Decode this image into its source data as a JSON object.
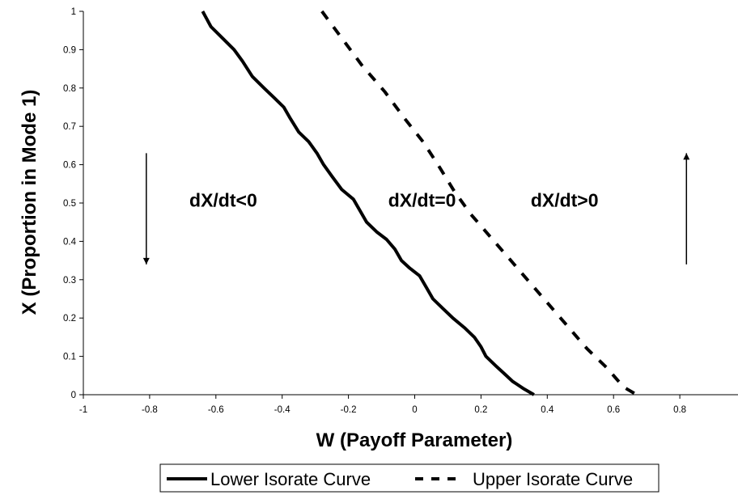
{
  "chart_data": {
    "type": "line",
    "xlabel": "W (Payoff Parameter)",
    "ylabel": "X (Proportion in Mode 1)",
    "xlim": [
      -1,
      1
    ],
    "ylim": [
      0,
      1
    ],
    "x_ticks": [
      -1,
      -0.8,
      -0.6,
      -0.4,
      -0.2,
      0,
      0.2,
      0.4,
      0.6,
      0.8
    ],
    "x_tick_labels": [
      "-1",
      "-0.8",
      "-0.6",
      "-0.4",
      "-0.2",
      "0",
      "0.2",
      "0.4",
      "0.6",
      "0.8"
    ],
    "y_ticks": [
      0,
      0.1,
      0.2,
      0.3,
      0.4,
      0.5,
      0.6,
      0.7,
      0.8,
      0.9,
      1
    ],
    "y_tick_labels": [
      "0",
      "0.1",
      "0.2",
      "0.3",
      "0.4",
      "0.5",
      "0.6",
      "0.7",
      "0.8",
      "0.9",
      "1"
    ],
    "grid": false,
    "legend_position": "bottom",
    "series": [
      {
        "name": "Lower Isorate Curve",
        "style": "solid",
        "color": "#000000",
        "points": [
          [
            -0.64,
            1.0
          ],
          [
            -0.615,
            0.96
          ],
          [
            -0.58,
            0.93
          ],
          [
            -0.545,
            0.9
          ],
          [
            -0.52,
            0.87
          ],
          [
            -0.49,
            0.83
          ],
          [
            -0.455,
            0.8
          ],
          [
            -0.425,
            0.775
          ],
          [
            -0.395,
            0.75
          ],
          [
            -0.375,
            0.72
          ],
          [
            -0.35,
            0.685
          ],
          [
            -0.32,
            0.66
          ],
          [
            -0.295,
            0.63
          ],
          [
            -0.275,
            0.6
          ],
          [
            -0.25,
            0.57
          ],
          [
            -0.22,
            0.535
          ],
          [
            -0.185,
            0.51
          ],
          [
            -0.165,
            0.48
          ],
          [
            -0.145,
            0.45
          ],
          [
            -0.115,
            0.425
          ],
          [
            -0.085,
            0.405
          ],
          [
            -0.06,
            0.38
          ],
          [
            -0.04,
            0.35
          ],
          [
            -0.015,
            0.33
          ],
          [
            0.015,
            0.31
          ],
          [
            0.035,
            0.28
          ],
          [
            0.055,
            0.25
          ],
          [
            0.085,
            0.225
          ],
          [
            0.115,
            0.2
          ],
          [
            0.15,
            0.175
          ],
          [
            0.18,
            0.15
          ],
          [
            0.2,
            0.125
          ],
          [
            0.215,
            0.1
          ],
          [
            0.245,
            0.075
          ],
          [
            0.27,
            0.055
          ],
          [
            0.295,
            0.035
          ],
          [
            0.33,
            0.015
          ],
          [
            0.36,
            0.0
          ]
        ]
      },
      {
        "name": "Upper Isorate Curve",
        "style": "dashed",
        "color": "#000000",
        "points": [
          [
            -0.28,
            1.0
          ],
          [
            -0.22,
            0.93
          ],
          [
            -0.16,
            0.86
          ],
          [
            -0.09,
            0.79
          ],
          [
            -0.03,
            0.72
          ],
          [
            0.025,
            0.66
          ],
          [
            0.07,
            0.6
          ],
          [
            0.12,
            0.53
          ],
          [
            0.17,
            0.47
          ],
          [
            0.23,
            0.41
          ],
          [
            0.29,
            0.35
          ],
          [
            0.34,
            0.3
          ],
          [
            0.4,
            0.24
          ],
          [
            0.46,
            0.18
          ],
          [
            0.52,
            0.12
          ],
          [
            0.58,
            0.07
          ],
          [
            0.63,
            0.02
          ],
          [
            0.67,
            0.0
          ]
        ]
      }
    ],
    "annotations": [
      {
        "text": "dX/dt<0",
        "x": -0.68,
        "y": 0.49
      },
      {
        "text": "dX/dt=0",
        "x": -0.08,
        "y": 0.49
      },
      {
        "text": "dX/dt>0",
        "x": 0.35,
        "y": 0.49
      }
    ],
    "arrows": [
      {
        "direction": "down",
        "x": -0.81,
        "y_from": 0.63,
        "y_to": 0.34
      },
      {
        "direction": "up",
        "x": 0.82,
        "y_from": 0.34,
        "y_to": 0.63
      }
    ]
  }
}
